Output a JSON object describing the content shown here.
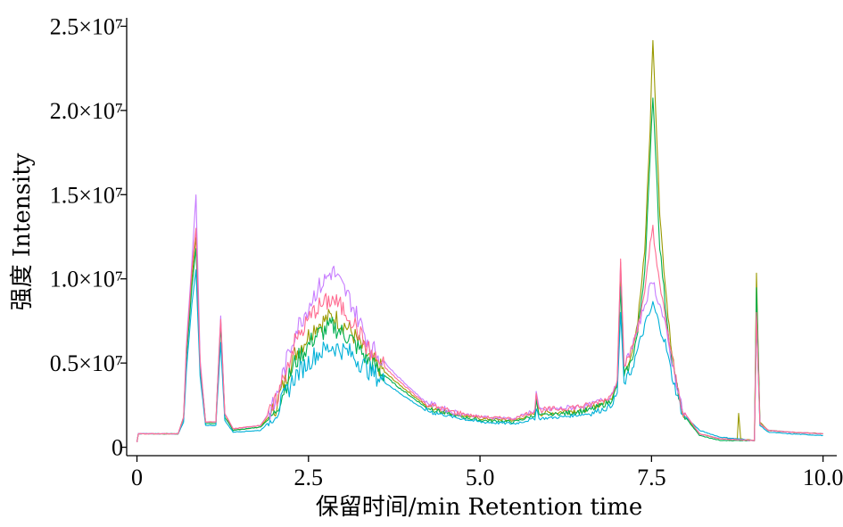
{
  "chart_data": {
    "type": "line",
    "xlabel": "保留时间/min  Retention time",
    "ylabel": "强度 Intensity",
    "xlim": [
      -0.15,
      10.2
    ],
    "ylim": [
      -0.05,
      2.55
    ],
    "x_ticks": [
      {
        "value": 0,
        "label": "0"
      },
      {
        "value": 2.5,
        "label": "2.5"
      },
      {
        "value": 5,
        "label": "5.0"
      },
      {
        "value": 7.5,
        "label": "7.5"
      },
      {
        "value": 10,
        "label": "10.0"
      }
    ],
    "y_ticks": [
      {
        "value": 0,
        "label": "0"
      },
      {
        "value": 0.5,
        "label": "0.5×10⁷"
      },
      {
        "value": 1.0,
        "label": "1.0×10⁷"
      },
      {
        "value": 1.5,
        "label": "1.5×10⁷"
      },
      {
        "value": 2.0,
        "label": "2.0×10⁷"
      },
      {
        "value": 2.5,
        "label": "2.5×10⁷"
      }
    ],
    "y_unit_note": "y values in units of 10^7",
    "grid": false,
    "legend": "none",
    "series": [
      {
        "color": "#999900",
        "values": [
          [
            0,
            0.03
          ],
          [
            0.02,
            0.08
          ],
          [
            0.6,
            0.08
          ],
          [
            0.68,
            0.18
          ],
          [
            0.72,
            0.55
          ],
          [
            0.8,
            1.0
          ],
          [
            0.86,
            1.25
          ],
          [
            0.92,
            0.5
          ],
          [
            1.0,
            0.15
          ],
          [
            1.15,
            0.15
          ],
          [
            1.22,
            0.75
          ],
          [
            1.28,
            0.2
          ],
          [
            1.4,
            0.1
          ],
          [
            1.8,
            0.12
          ],
          [
            2.0,
            0.22
          ],
          [
            2.3,
            0.55
          ],
          [
            2.6,
            0.72
          ],
          [
            2.85,
            0.78
          ],
          [
            3.1,
            0.7
          ],
          [
            3.4,
            0.52
          ],
          [
            3.8,
            0.38
          ],
          [
            4.2,
            0.25
          ],
          [
            4.6,
            0.2
          ],
          [
            5.0,
            0.17
          ],
          [
            5.5,
            0.16
          ],
          [
            5.8,
            0.2
          ],
          [
            5.82,
            0.3
          ],
          [
            5.86,
            0.2
          ],
          [
            6.2,
            0.21
          ],
          [
            6.6,
            0.23
          ],
          [
            6.9,
            0.28
          ],
          [
            7.0,
            0.38
          ],
          [
            7.05,
            1.05
          ],
          [
            7.1,
            0.45
          ],
          [
            7.2,
            0.55
          ],
          [
            7.3,
            0.75
          ],
          [
            7.4,
            1.15
          ],
          [
            7.48,
            1.9
          ],
          [
            7.52,
            2.43
          ],
          [
            7.56,
            2.0
          ],
          [
            7.62,
            1.4
          ],
          [
            7.7,
            0.95
          ],
          [
            7.8,
            0.55
          ],
          [
            7.95,
            0.2
          ],
          [
            8.2,
            0.08
          ],
          [
            8.5,
            0.05
          ],
          [
            8.75,
            0.05
          ],
          [
            8.77,
            0.2
          ],
          [
            8.8,
            0.05
          ],
          [
            9.0,
            0.04
          ],
          [
            9.03,
            1.03
          ],
          [
            9.08,
            0.15
          ],
          [
            9.2,
            0.1
          ],
          [
            9.5,
            0.09
          ],
          [
            10.0,
            0.08
          ]
        ]
      },
      {
        "color": "#00B050",
        "values": [
          [
            0,
            0.03
          ],
          [
            0.02,
            0.08
          ],
          [
            0.6,
            0.08
          ],
          [
            0.68,
            0.17
          ],
          [
            0.72,
            0.52
          ],
          [
            0.8,
            0.95
          ],
          [
            0.86,
            1.18
          ],
          [
            0.92,
            0.48
          ],
          [
            1.0,
            0.14
          ],
          [
            1.15,
            0.14
          ],
          [
            1.22,
            0.72
          ],
          [
            1.28,
            0.18
          ],
          [
            1.4,
            0.1
          ],
          [
            1.8,
            0.12
          ],
          [
            2.0,
            0.2
          ],
          [
            2.3,
            0.5
          ],
          [
            2.6,
            0.66
          ],
          [
            2.85,
            0.72
          ],
          [
            3.1,
            0.65
          ],
          [
            3.4,
            0.5
          ],
          [
            3.8,
            0.36
          ],
          [
            4.2,
            0.24
          ],
          [
            4.6,
            0.19
          ],
          [
            5.0,
            0.16
          ],
          [
            5.5,
            0.15
          ],
          [
            5.8,
            0.19
          ],
          [
            5.82,
            0.27
          ],
          [
            5.86,
            0.19
          ],
          [
            6.2,
            0.2
          ],
          [
            6.6,
            0.22
          ],
          [
            6.9,
            0.27
          ],
          [
            7.0,
            0.36
          ],
          [
            7.05,
            0.95
          ],
          [
            7.1,
            0.42
          ],
          [
            7.2,
            0.5
          ],
          [
            7.3,
            0.68
          ],
          [
            7.4,
            1.05
          ],
          [
            7.48,
            1.7
          ],
          [
            7.52,
            2.1
          ],
          [
            7.56,
            1.75
          ],
          [
            7.62,
            1.2
          ],
          [
            7.7,
            0.85
          ],
          [
            7.8,
            0.5
          ],
          [
            7.95,
            0.2
          ],
          [
            8.2,
            0.07
          ],
          [
            8.5,
            0.04
          ],
          [
            9.0,
            0.04
          ],
          [
            9.03,
            0.95
          ],
          [
            9.08,
            0.14
          ],
          [
            9.2,
            0.1
          ],
          [
            9.5,
            0.09
          ],
          [
            10.0,
            0.08
          ]
        ]
      },
      {
        "color": "#00B0D8",
        "values": [
          [
            0,
            0.03
          ],
          [
            0.02,
            0.08
          ],
          [
            0.6,
            0.08
          ],
          [
            0.68,
            0.15
          ],
          [
            0.72,
            0.45
          ],
          [
            0.8,
            0.85
          ],
          [
            0.86,
            1.05
          ],
          [
            0.92,
            0.42
          ],
          [
            1.0,
            0.13
          ],
          [
            1.15,
            0.13
          ],
          [
            1.22,
            0.62
          ],
          [
            1.28,
            0.16
          ],
          [
            1.4,
            0.09
          ],
          [
            1.8,
            0.1
          ],
          [
            2.0,
            0.18
          ],
          [
            2.3,
            0.42
          ],
          [
            2.6,
            0.55
          ],
          [
            2.85,
            0.6
          ],
          [
            3.1,
            0.56
          ],
          [
            3.4,
            0.45
          ],
          [
            3.8,
            0.33
          ],
          [
            4.2,
            0.22
          ],
          [
            4.6,
            0.18
          ],
          [
            5.0,
            0.15
          ],
          [
            5.5,
            0.14
          ],
          [
            5.8,
            0.17
          ],
          [
            5.82,
            0.24
          ],
          [
            5.86,
            0.17
          ],
          [
            6.2,
            0.18
          ],
          [
            6.6,
            0.2
          ],
          [
            6.9,
            0.24
          ],
          [
            7.0,
            0.32
          ],
          [
            7.05,
            0.8
          ],
          [
            7.1,
            0.38
          ],
          [
            7.2,
            0.45
          ],
          [
            7.3,
            0.58
          ],
          [
            7.4,
            0.72
          ],
          [
            7.48,
            0.8
          ],
          [
            7.52,
            0.85
          ],
          [
            7.56,
            0.8
          ],
          [
            7.62,
            0.72
          ],
          [
            7.7,
            0.62
          ],
          [
            7.8,
            0.42
          ],
          [
            7.95,
            0.2
          ],
          [
            8.2,
            0.1
          ],
          [
            8.5,
            0.06
          ],
          [
            9.0,
            0.04
          ],
          [
            9.03,
            0.75
          ],
          [
            9.08,
            0.13
          ],
          [
            9.2,
            0.09
          ],
          [
            9.5,
            0.08
          ],
          [
            10.0,
            0.07
          ]
        ]
      },
      {
        "color": "#C77CFF",
        "values": [
          [
            0,
            0.03
          ],
          [
            0.02,
            0.08
          ],
          [
            0.6,
            0.08
          ],
          [
            0.68,
            0.18
          ],
          [
            0.72,
            0.6
          ],
          [
            0.8,
            1.1
          ],
          [
            0.86,
            1.5
          ],
          [
            0.92,
            0.52
          ],
          [
            1.0,
            0.15
          ],
          [
            1.15,
            0.15
          ],
          [
            1.22,
            0.78
          ],
          [
            1.28,
            0.2
          ],
          [
            1.4,
            0.11
          ],
          [
            1.8,
            0.13
          ],
          [
            2.0,
            0.25
          ],
          [
            2.3,
            0.68
          ],
          [
            2.6,
            0.92
          ],
          [
            2.85,
            1.05
          ],
          [
            3.1,
            0.88
          ],
          [
            3.4,
            0.6
          ],
          [
            3.8,
            0.42
          ],
          [
            4.2,
            0.27
          ],
          [
            4.6,
            0.21
          ],
          [
            5.0,
            0.18
          ],
          [
            5.5,
            0.17
          ],
          [
            5.8,
            0.22
          ],
          [
            5.82,
            0.33
          ],
          [
            5.86,
            0.22
          ],
          [
            6.2,
            0.23
          ],
          [
            6.6,
            0.25
          ],
          [
            6.9,
            0.3
          ],
          [
            7.0,
            0.4
          ],
          [
            7.05,
            1.1
          ],
          [
            7.1,
            0.48
          ],
          [
            7.2,
            0.58
          ],
          [
            7.3,
            0.7
          ],
          [
            7.4,
            0.85
          ],
          [
            7.48,
            0.95
          ],
          [
            7.52,
            1.0
          ],
          [
            7.56,
            0.92
          ],
          [
            7.62,
            0.85
          ],
          [
            7.7,
            0.72
          ],
          [
            7.8,
            0.5
          ],
          [
            7.95,
            0.22
          ],
          [
            8.2,
            0.08
          ],
          [
            8.5,
            0.05
          ],
          [
            9.0,
            0.04
          ],
          [
            9.03,
            0.78
          ],
          [
            9.08,
            0.14
          ],
          [
            9.2,
            0.1
          ],
          [
            9.5,
            0.09
          ],
          [
            10.0,
            0.08
          ]
        ]
      },
      {
        "color": "#FF6C91",
        "values": [
          [
            0,
            0.03
          ],
          [
            0.02,
            0.08
          ],
          [
            0.6,
            0.08
          ],
          [
            0.68,
            0.18
          ],
          [
            0.72,
            0.58
          ],
          [
            0.8,
            1.05
          ],
          [
            0.86,
            1.3
          ],
          [
            0.92,
            0.5
          ],
          [
            1.0,
            0.15
          ],
          [
            1.15,
            0.15
          ],
          [
            1.22,
            0.76
          ],
          [
            1.28,
            0.2
          ],
          [
            1.4,
            0.11
          ],
          [
            1.8,
            0.13
          ],
          [
            2.0,
            0.24
          ],
          [
            2.3,
            0.62
          ],
          [
            2.6,
            0.82
          ],
          [
            2.85,
            0.88
          ],
          [
            3.1,
            0.78
          ],
          [
            3.4,
            0.56
          ],
          [
            3.8,
            0.4
          ],
          [
            4.2,
            0.26
          ],
          [
            4.6,
            0.21
          ],
          [
            5.0,
            0.18
          ],
          [
            5.5,
            0.17
          ],
          [
            5.8,
            0.22
          ],
          [
            5.82,
            0.32
          ],
          [
            5.86,
            0.22
          ],
          [
            6.2,
            0.23
          ],
          [
            6.6,
            0.25
          ],
          [
            6.9,
            0.3
          ],
          [
            7.0,
            0.4
          ],
          [
            7.05,
            1.12
          ],
          [
            7.1,
            0.48
          ],
          [
            7.2,
            0.57
          ],
          [
            7.3,
            0.72
          ],
          [
            7.4,
            0.9
          ],
          [
            7.48,
            1.2
          ],
          [
            7.52,
            1.32
          ],
          [
            7.56,
            1.15
          ],
          [
            7.62,
            0.95
          ],
          [
            7.7,
            0.78
          ],
          [
            7.8,
            0.52
          ],
          [
            7.95,
            0.22
          ],
          [
            8.2,
            0.08
          ],
          [
            8.5,
            0.05
          ],
          [
            9.0,
            0.04
          ],
          [
            9.03,
            0.8
          ],
          [
            9.08,
            0.14
          ],
          [
            9.2,
            0.1
          ],
          [
            9.5,
            0.09
          ],
          [
            10.0,
            0.08
          ]
        ]
      }
    ]
  }
}
